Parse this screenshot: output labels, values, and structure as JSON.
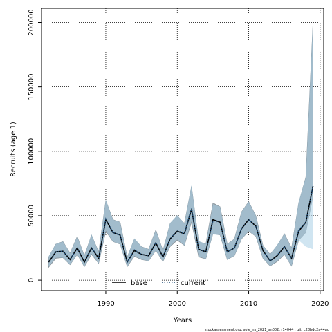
{
  "chart_data": {
    "type": "line",
    "title": "",
    "xlabel": "Years",
    "ylabel": "Recruits (age 1)",
    "xlim": [
      1981,
      2020.5
    ],
    "ylim": [
      -8000,
      211000
    ],
    "xticks": [
      1990,
      2000,
      2010,
      2020
    ],
    "yticks": [
      0,
      50000,
      100000,
      150000,
      200000
    ],
    "grid": true,
    "legend_position": "bottom-center",
    "colors": {
      "base": "#000000",
      "current": "#1f4e79",
      "band_base": "#9aa5ad",
      "band_current": "#a9cfe6"
    },
    "legend": [
      {
        "label": "base",
        "style": "solid",
        "color": "#000000"
      },
      {
        "label": "current",
        "style": "dotted",
        "color": "#1f4e79"
      }
    ],
    "years": [
      1982,
      1983,
      1984,
      1985,
      1986,
      1987,
      1988,
      1989,
      1990,
      1991,
      1992,
      1993,
      1994,
      1995,
      1996,
      1997,
      1998,
      1999,
      2000,
      2001,
      2002,
      2003,
      2004,
      2005,
      2006,
      2007,
      2008,
      2009,
      2010,
      2011,
      2012,
      2013,
      2014,
      2015,
      2016,
      2017,
      2018,
      2019
    ],
    "series": [
      {
        "name": "base",
        "values": [
          14000,
          22000,
          22500,
          16000,
          25000,
          14000,
          25000,
          17000,
          47000,
          37000,
          35000,
          14000,
          23000,
          20000,
          19000,
          29000,
          18000,
          32000,
          38000,
          36000,
          55000,
          24000,
          22000,
          47000,
          45000,
          22000,
          25000,
          40000,
          47000,
          42000,
          23000,
          15000,
          19000,
          26000,
          17000,
          38000,
          45000,
          73000
        ],
        "lower": [
          10000,
          17000,
          17500,
          12000,
          20000,
          10500,
          20000,
          13000,
          38000,
          30000,
          28000,
          10500,
          18500,
          16000,
          15000,
          23000,
          14500,
          26000,
          31000,
          27000,
          45000,
          18000,
          16500,
          36000,
          35000,
          16000,
          19000,
          32000,
          38000,
          34000,
          17000,
          11000,
          14500,
          20000,
          11000,
          31000,
          37000,
          65000
        ],
        "upper": [
          18000,
          28000,
          30000,
          21000,
          34000,
          19000,
          35000,
          22000,
          62000,
          47000,
          45000,
          18000,
          32000,
          26000,
          24000,
          39000,
          23000,
          44000,
          50000,
          44000,
          73000,
          30000,
          28000,
          60000,
          57000,
          28000,
          32000,
          53000,
          61000,
          50000,
          27000,
          20000,
          27000,
          36000,
          25000,
          60000,
          80000,
          200000
        ]
      },
      {
        "name": "current",
        "values": [
          14500,
          22000,
          22500,
          16000,
          25000,
          14000,
          25500,
          17000,
          47500,
          37000,
          35000,
          14000,
          23500,
          20000,
          19000,
          29000,
          18000,
          32000,
          38500,
          36000,
          56000,
          24000,
          22000,
          46000,
          45000,
          22000,
          25000,
          40000,
          47000,
          42000,
          23000,
          15000,
          19500,
          26000,
          17000,
          39000,
          45000,
          73000
        ],
        "lower": [
          10500,
          17500,
          17500,
          12000,
          20000,
          10500,
          20500,
          13000,
          38500,
          30000,
          28000,
          10500,
          19000,
          16000,
          15000,
          23000,
          14500,
          26500,
          31500,
          27000,
          46000,
          18500,
          16500,
          35500,
          35000,
          16000,
          19000,
          32000,
          38000,
          34000,
          17000,
          11000,
          15000,
          20000,
          11000,
          31000,
          26000,
          24000
        ],
        "upper": [
          18500,
          28000,
          30000,
          21000,
          34000,
          19000,
          35500,
          22000,
          62500,
          47000,
          45000,
          18000,
          32500,
          26000,
          24000,
          39000,
          23000,
          44500,
          50500,
          44000,
          74000,
          30500,
          28000,
          59000,
          57000,
          28000,
          32000,
          53000,
          61000,
          50000,
          27000,
          20000,
          27500,
          36000,
          25000,
          61000,
          80000,
          202000
        ]
      }
    ],
    "footer": "stockassessment.org,  sole_ns_2021_sn002, r14044 ,  git: c28bdc2a44ad"
  }
}
